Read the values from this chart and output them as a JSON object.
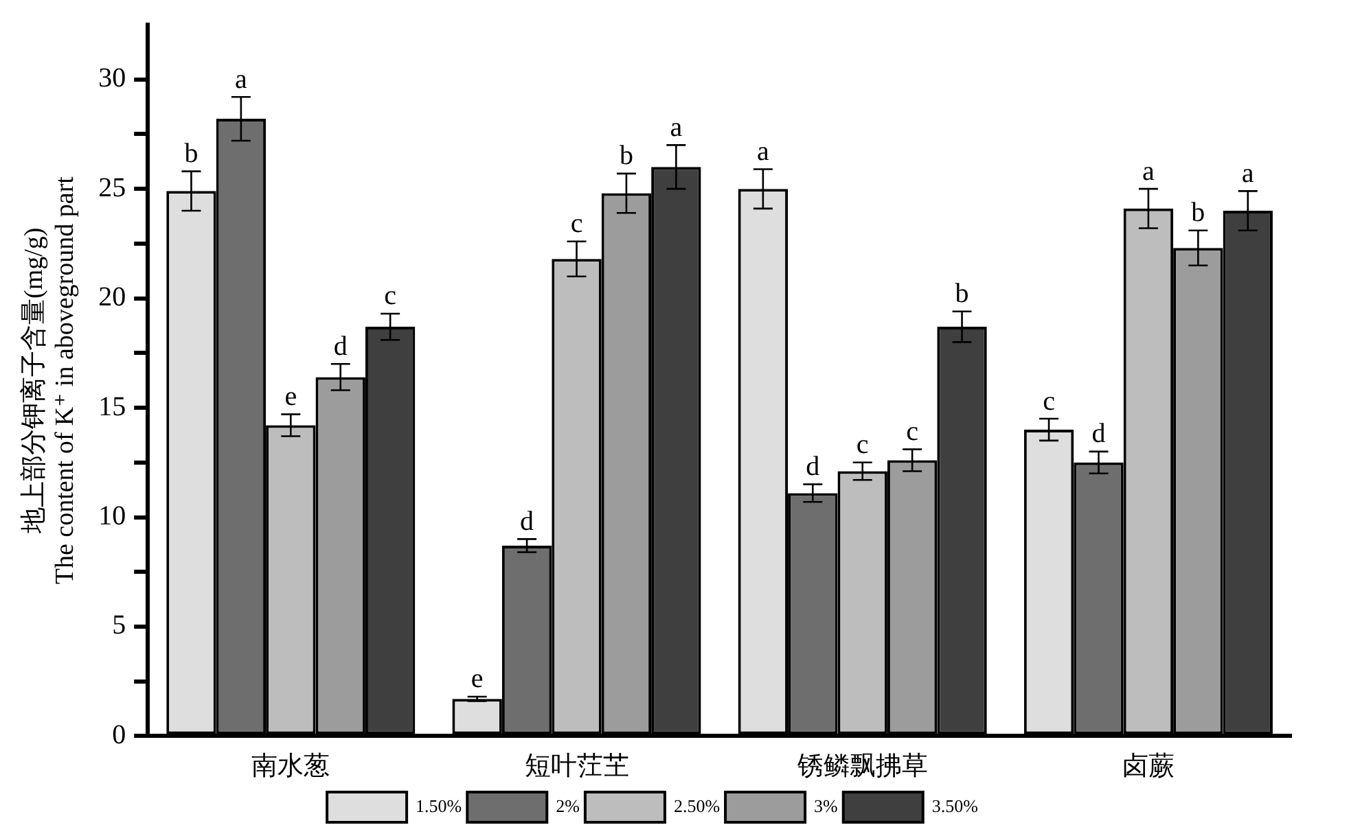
{
  "chart_data": {
    "type": "bar",
    "ylabel": "地上部分钾离子含量(mg/g)\nThe content of K⁺ in aboveground part",
    "categories": [
      "南水葱",
      "短叶茳芏",
      "锈鳞飘拂草",
      "卤蕨"
    ],
    "series": [
      {
        "name": "1.50%",
        "color": "#dedede",
        "values": [
          24.9,
          1.7,
          25.0,
          14.0
        ],
        "errors": [
          0.9,
          0.1,
          0.9,
          0.5
        ],
        "value_labels": [
          "b",
          "e",
          "a",
          "c"
        ]
      },
      {
        "name": "2%",
        "color": "#6e6e6e",
        "values": [
          28.2,
          8.7,
          11.1,
          12.5
        ],
        "errors": [
          1.0,
          0.3,
          0.4,
          0.5
        ],
        "value_labels": [
          "a",
          "d",
          "d",
          "d"
        ]
      },
      {
        "name": "2.50%",
        "color": "#bdbdbd",
        "values": [
          14.2,
          21.8,
          12.1,
          24.1
        ],
        "errors": [
          0.5,
          0.8,
          0.4,
          0.9
        ],
        "value_labels": [
          "e",
          "c",
          "c",
          "a"
        ]
      },
      {
        "name": "3%",
        "color": "#9c9c9c",
        "values": [
          16.4,
          24.8,
          12.6,
          22.3
        ],
        "errors": [
          0.6,
          0.9,
          0.5,
          0.8
        ],
        "value_labels": [
          "d",
          "b",
          "c",
          "b"
        ]
      },
      {
        "name": "3.50%",
        "color": "#3f3f3f",
        "values": [
          18.7,
          26.0,
          18.7,
          24.0
        ],
        "errors": [
          0.6,
          1.0,
          0.7,
          0.9
        ],
        "value_labels": [
          "c",
          "a",
          "b",
          "a"
        ]
      }
    ],
    "ylim": [
      0,
      32.5
    ],
    "yticks": [
      0,
      {
        "value": 2.5,
        "label": null
      },
      5,
      {
        "value": 7.5,
        "label": null
      },
      10,
      {
        "value": 12.5,
        "label": null
      },
      15,
      {
        "value": 17.5,
        "label": null
      },
      20,
      {
        "value": 22.5,
        "label": null
      },
      25,
      {
        "value": 27.5,
        "label": null
      },
      30
    ],
    "grid": false,
    "legend": "bottom"
  }
}
